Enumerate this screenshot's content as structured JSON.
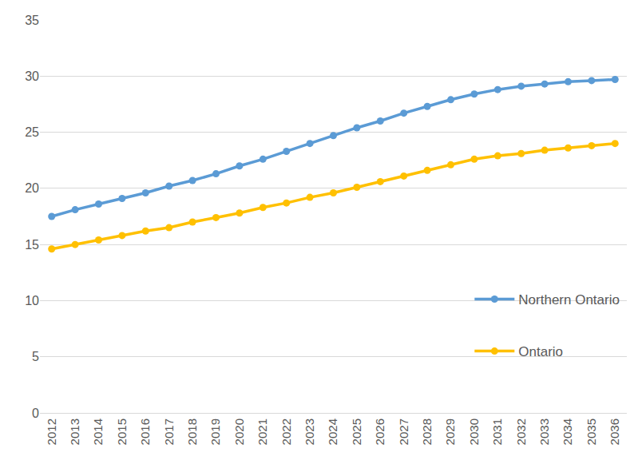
{
  "chart_data": {
    "type": "line",
    "categories": [
      "2012",
      "2013",
      "2014",
      "2015",
      "2016",
      "2017",
      "2018",
      "2019",
      "2020",
      "2021",
      "2022",
      "2023",
      "2024",
      "2025",
      "2026",
      "2027",
      "2028",
      "2029",
      "2030",
      "2031",
      "2032",
      "2033",
      "2034",
      "2035",
      "2036"
    ],
    "series": [
      {
        "name": "Northern Ontario",
        "color": "#5B9BD5",
        "marker": "circle",
        "line_style": "solid",
        "values": [
          17.5,
          18.1,
          18.6,
          19.1,
          19.6,
          20.2,
          20.7,
          21.3,
          22.0,
          22.6,
          23.3,
          24.0,
          24.7,
          25.4,
          26.0,
          26.7,
          27.3,
          27.9,
          28.4,
          28.8,
          29.1,
          29.3,
          29.5,
          29.6,
          29.7
        ]
      },
      {
        "name": "Ontario",
        "color": "#FFC000",
        "marker": "circle",
        "line_style": "solid",
        "values": [
          14.6,
          15.0,
          15.4,
          15.8,
          16.2,
          16.5,
          17.0,
          17.4,
          17.8,
          18.3,
          18.7,
          19.2,
          19.6,
          20.1,
          20.6,
          21.1,
          21.6,
          22.1,
          22.6,
          22.9,
          23.1,
          23.4,
          23.6,
          23.8,
          24.0
        ]
      }
    ],
    "ylim": [
      0,
      35
    ],
    "yticks": [
      0,
      5,
      10,
      15,
      20,
      25,
      30,
      35
    ],
    "grid": true,
    "legend": "bottom right"
  }
}
